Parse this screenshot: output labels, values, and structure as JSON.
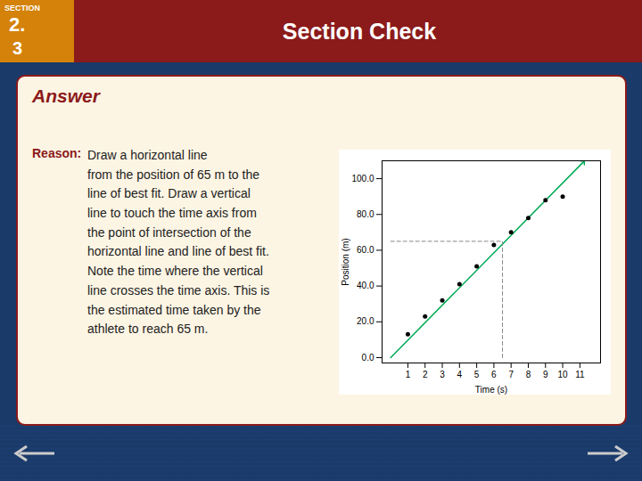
{
  "chart_data": {
    "type": "scatter",
    "title": "Section Check",
    "annotations": [
      "SECTION",
      "2.",
      "3",
      "Answer",
      "Reason:",
      "Draw a horizontal line\nfrom the position of 65 m to the\nline of best fit. Draw a vertical\nline to touch the time axis from\nthe point of intersection of the\nhorizontal line and line of best fit.\nNote the time where the vertical\nline crosses the time axis. This is\nthe estimated time taken by the\nathlete to reach 65 m."
    ],
    "series": [
      {
        "type": "line",
        "color": "#00aa55",
        "marker": "arrow",
        "x": [
          0,
          11.2
        ],
        "values": [
          0,
          109.32363636363635
        ]
      },
      {
        "type": "scatter",
        "color": "black",
        "x": [
          1,
          2,
          3,
          4,
          5,
          6,
          7,
          8,
          9,
          10
        ],
        "values": [
          13,
          23,
          32,
          41,
          51,
          63,
          70,
          78,
          88,
          90
        ]
      },
      {
        "type": "line",
        "color": "#888888",
        "line_style": "dashed",
        "x": [
          0,
          6.5
        ],
        "values": [
          65,
          65
        ]
      },
      {
        "type": "line",
        "color": "#888888",
        "line_style": "dashed",
        "x": [
          6.5,
          6.5
        ],
        "values": [
          0,
          65
        ]
      }
    ],
    "x_label": "Time (s)",
    "y_label": "Position (m)",
    "xlim": [
      -0.5,
      12.2
    ],
    "ylim": [
      -3,
      110
    ],
    "xticks": [
      1,
      2,
      3,
      4,
      5,
      6,
      7,
      8,
      9,
      10,
      11
    ],
    "yticks": [
      {
        "value": 0.0,
        "label": "0.0"
      },
      {
        "value": 20.0,
        "label": "20.0"
      },
      {
        "value": 40.0,
        "label": "40.0"
      },
      {
        "value": 60.0,
        "label": "60.0"
      },
      {
        "value": 80.0,
        "label": "80.0"
      },
      {
        "value": 100.0,
        "label": "100.0"
      }
    ],
    "grid": false
  }
}
